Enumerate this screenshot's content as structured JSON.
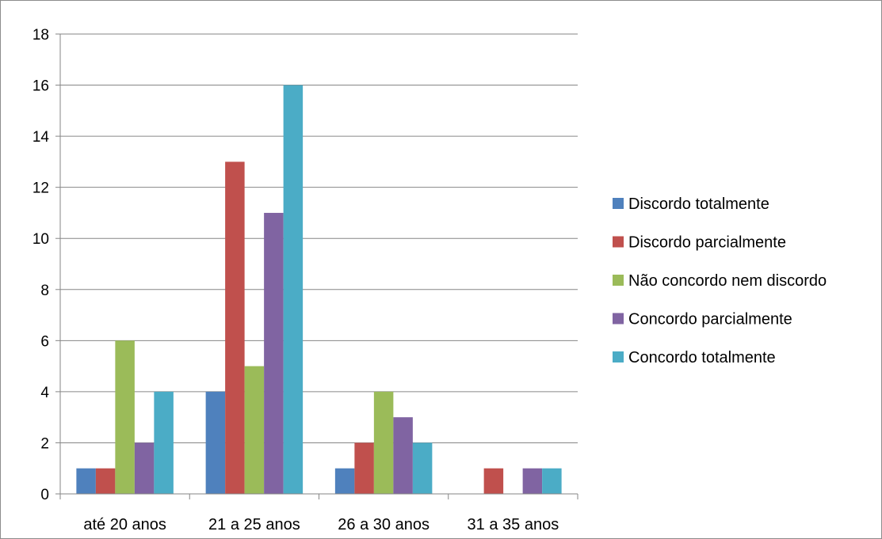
{
  "chart_data": {
    "type": "bar",
    "categories": [
      "até 20 anos",
      "21 a 25 anos",
      "26 a 30 anos",
      "31 a 35 anos"
    ],
    "series": [
      {
        "name": "Discordo totalmente",
        "color": "#4f81bd",
        "values": [
          1,
          4,
          1,
          0
        ]
      },
      {
        "name": "Discordo parcialmente",
        "color": "#c0504d",
        "values": [
          1,
          13,
          2,
          1
        ]
      },
      {
        "name": "Não concordo nem discordo",
        "color": "#9bbb59",
        "values": [
          6,
          5,
          4,
          0
        ]
      },
      {
        "name": "Concordo parcialmente",
        "color": "#8064a2",
        "values": [
          2,
          11,
          3,
          1
        ]
      },
      {
        "name": "Concordo totalmente",
        "color": "#4bacc6",
        "values": [
          4,
          16,
          2,
          1
        ]
      }
    ],
    "y_ticks": [
      "0",
      "2",
      "4",
      "6",
      "8",
      "10",
      "12",
      "14",
      "16",
      "18"
    ],
    "ylim": [
      0,
      18
    ],
    "grid": true,
    "legend_position": "right",
    "title": "",
    "xlabel": "",
    "ylabel": ""
  }
}
